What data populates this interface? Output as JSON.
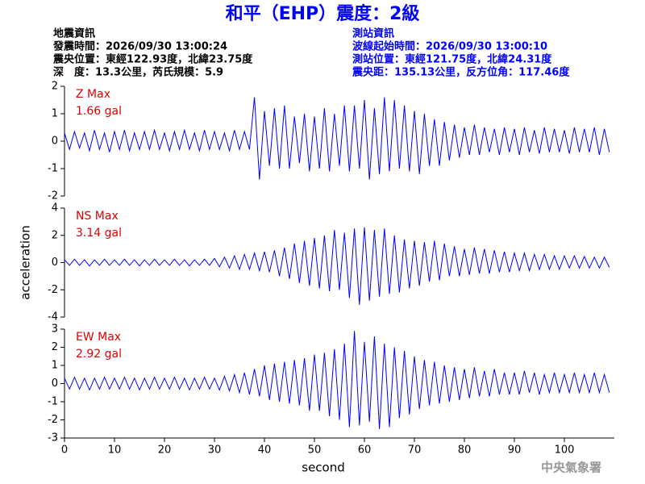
{
  "header": {
    "title": "和平（EHP）震度：2級",
    "left": [
      "地震資訊",
      "發震時間：2026/09/30 13:00:24",
      "震央位置：東經122.93度，北緯23.75度",
      "深　度：13.3公里，芮氏規模：5.9"
    ],
    "right": [
      "測站資訊",
      "波線起始時間：2026/09/30 13:00:10",
      "測站位置：東經121.75度，北緯24.31度",
      "震央距：135.13公里，反方位角：117.46度"
    ],
    "footer": "中央氣象署"
  },
  "chart_data": [
    {
      "type": "line",
      "annotation": [
        "Z Max",
        "1.66 gal"
      ],
      "x": [
        0,
        1,
        2,
        3,
        4,
        5,
        6,
        7,
        8,
        9,
        10,
        11,
        12,
        13,
        14,
        15,
        16,
        17,
        18,
        19,
        20,
        21,
        22,
        23,
        24,
        25,
        26,
        27,
        28,
        29,
        30,
        31,
        32,
        33,
        34,
        35,
        36,
        37,
        38,
        39,
        40,
        41,
        42,
        43,
        44,
        45,
        46,
        47,
        48,
        49,
        50,
        51,
        52,
        53,
        54,
        55,
        56,
        57,
        58,
        59,
        60,
        61,
        62,
        63,
        64,
        65,
        66,
        67,
        68,
        69,
        70,
        71,
        72,
        73,
        74,
        75,
        76,
        77,
        78,
        79,
        80,
        81,
        82,
        83,
        84,
        85,
        86,
        87,
        88,
        89,
        90,
        91,
        92,
        93,
        94,
        95,
        96,
        97,
        98,
        99,
        100,
        101,
        102,
        103,
        104,
        105,
        106,
        107,
        108,
        109
      ],
      "series": [
        {
          "color": "#0000ff",
          "values": [
            0.3,
            -0.3,
            0.35,
            -0.25,
            0.3,
            -0.35,
            0.4,
            -0.3,
            0.3,
            -0.4,
            0.35,
            -0.3,
            0.4,
            -0.35,
            0.3,
            -0.3,
            0.35,
            -0.3,
            0.4,
            -0.3,
            0.3,
            -0.35,
            0.35,
            -0.3,
            0.4,
            -0.3,
            0.3,
            -0.35,
            0.4,
            -0.3,
            0.35,
            -0.3,
            0.3,
            -0.35,
            0.4,
            -0.3,
            0.35,
            -0.3,
            1.6,
            -1.4,
            1.1,
            -0.9,
            1.2,
            -1.0,
            1.3,
            -1.0,
            0.9,
            -0.8,
            1.0,
            -1.1,
            0.9,
            -1.0,
            1.2,
            -1.1,
            1.0,
            -0.9,
            1.3,
            -1.1,
            1.3,
            -1.0,
            1.5,
            -1.4,
            1.2,
            -1.2,
            1.6,
            -1.1,
            1.5,
            -1.0,
            1.3,
            -1.1,
            1.1,
            -1.2,
            1.0,
            -0.9,
            0.8,
            -0.9,
            0.7,
            -0.7,
            0.6,
            -0.6,
            0.5,
            -0.5,
            0.6,
            -0.5,
            0.5,
            -0.4,
            0.45,
            -0.5,
            0.5,
            -0.4,
            0.45,
            -0.5,
            0.5,
            -0.4,
            0.4,
            -0.45,
            0.5,
            -0.4,
            0.45,
            -0.4,
            0.4,
            -0.45,
            0.5,
            -0.4,
            0.45,
            -0.4,
            0.5,
            -0.5,
            0.45,
            -0.4
          ]
        }
      ],
      "xlim": [
        0,
        110
      ],
      "ylim": [
        -2,
        2
      ],
      "yticks": [
        -2,
        -1,
        0,
        1,
        2
      ]
    },
    {
      "type": "line",
      "annotation": [
        "NS Max",
        "3.14 gal"
      ],
      "ylabel": "acceleration",
      "x": [
        0,
        1,
        2,
        3,
        4,
        5,
        6,
        7,
        8,
        9,
        10,
        11,
        12,
        13,
        14,
        15,
        16,
        17,
        18,
        19,
        20,
        21,
        22,
        23,
        24,
        25,
        26,
        27,
        28,
        29,
        30,
        31,
        32,
        33,
        34,
        35,
        36,
        37,
        38,
        39,
        40,
        41,
        42,
        43,
        44,
        45,
        46,
        47,
        48,
        49,
        50,
        51,
        52,
        53,
        54,
        55,
        56,
        57,
        58,
        59,
        60,
        61,
        62,
        63,
        64,
        65,
        66,
        67,
        68,
        69,
        70,
        71,
        72,
        73,
        74,
        75,
        76,
        77,
        78,
        79,
        80,
        81,
        82,
        83,
        84,
        85,
        86,
        87,
        88,
        89,
        90,
        91,
        92,
        93,
        94,
        95,
        96,
        97,
        98,
        99,
        100,
        101,
        102,
        103,
        104,
        105,
        106,
        107,
        108,
        109
      ],
      "series": [
        {
          "color": "#0000ff",
          "values": [
            0.2,
            -0.2,
            0.25,
            -0.2,
            0.2,
            -0.25,
            0.2,
            -0.2,
            0.25,
            -0.2,
            0.2,
            -0.2,
            0.25,
            -0.2,
            0.2,
            -0.25,
            0.2,
            -0.2,
            0.25,
            -0.2,
            0.2,
            -0.2,
            0.25,
            -0.2,
            0.2,
            -0.25,
            0.2,
            -0.2,
            0.25,
            -0.2,
            0.3,
            -0.3,
            0.4,
            -0.4,
            0.5,
            -0.5,
            0.6,
            -0.5,
            0.7,
            -0.6,
            0.8,
            -0.7,
            0.9,
            -1.0,
            1.1,
            -1.2,
            1.4,
            -1.5,
            1.6,
            -1.7,
            1.8,
            -1.9,
            2.0,
            -2.1,
            2.4,
            -2.0,
            2.2,
            -2.6,
            2.5,
            -3.1,
            2.6,
            -2.8,
            2.4,
            -2.5,
            2.5,
            -2.3,
            2.0,
            -2.2,
            1.7,
            -1.9,
            1.6,
            -1.7,
            1.5,
            -1.4,
            1.6,
            -1.3,
            1.4,
            -1.0,
            1.2,
            -1.0,
            1.0,
            -0.9,
            1.1,
            -0.8,
            1.0,
            -0.8,
            0.9,
            -0.7,
            0.8,
            -0.7,
            0.7,
            -0.6,
            0.7,
            -0.6,
            0.6,
            -0.5,
            0.6,
            -0.5,
            0.5,
            -0.5,
            0.5,
            -0.4,
            0.5,
            -0.4,
            0.45,
            -0.4,
            0.4,
            -0.4,
            0.4,
            -0.35
          ]
        }
      ],
      "xlim": [
        0,
        110
      ],
      "ylim": [
        -4,
        4
      ],
      "yticks": [
        -4,
        -2,
        0,
        2,
        4
      ]
    },
    {
      "type": "line",
      "annotation": [
        "EW Max",
        "2.92 gal"
      ],
      "xlabel": "second",
      "x": [
        0,
        1,
        2,
        3,
        4,
        5,
        6,
        7,
        8,
        9,
        10,
        11,
        12,
        13,
        14,
        15,
        16,
        17,
        18,
        19,
        20,
        21,
        22,
        23,
        24,
        25,
        26,
        27,
        28,
        29,
        30,
        31,
        32,
        33,
        34,
        35,
        36,
        37,
        38,
        39,
        40,
        41,
        42,
        43,
        44,
        45,
        46,
        47,
        48,
        49,
        50,
        51,
        52,
        53,
        54,
        55,
        56,
        57,
        58,
        59,
        60,
        61,
        62,
        63,
        64,
        65,
        66,
        67,
        68,
        69,
        70,
        71,
        72,
        73,
        74,
        75,
        76,
        77,
        78,
        79,
        80,
        81,
        82,
        83,
        84,
        85,
        86,
        87,
        88,
        89,
        90,
        91,
        92,
        93,
        94,
        95,
        96,
        97,
        98,
        99,
        100,
        101,
        102,
        103,
        104,
        105,
        106,
        107,
        108,
        109
      ],
      "series": [
        {
          "color": "#0000ff",
          "values": [
            0.3,
            -0.3,
            0.35,
            -0.3,
            0.3,
            -0.35,
            0.3,
            -0.3,
            0.35,
            -0.3,
            0.3,
            -0.3,
            0.35,
            -0.3,
            0.3,
            -0.35,
            0.3,
            -0.3,
            0.35,
            -0.3,
            0.3,
            -0.3,
            0.35,
            -0.3,
            0.3,
            -0.35,
            0.3,
            -0.3,
            0.35,
            -0.3,
            0.3,
            -0.35,
            0.4,
            -0.4,
            0.5,
            -0.5,
            0.6,
            -0.6,
            0.8,
            -0.7,
            1.0,
            -0.9,
            1.1,
            -1.0,
            1.2,
            -1.1,
            1.3,
            -1.2,
            1.4,
            -1.5,
            1.6,
            -1.5,
            1.7,
            -1.8,
            1.9,
            -2.0,
            2.2,
            -2.4,
            2.9,
            -2.3,
            2.3,
            -2.1,
            2.6,
            -2.5,
            2.2,
            -2.4,
            2.0,
            -1.9,
            1.8,
            -1.7,
            1.5,
            -1.4,
            1.3,
            -1.2,
            1.2,
            -1.1,
            1.0,
            -1.0,
            0.9,
            -0.9,
            0.8,
            -0.8,
            0.9,
            -0.7,
            0.7,
            -0.7,
            0.8,
            -0.6,
            0.6,
            -0.6,
            0.6,
            -0.6,
            0.7,
            -0.5,
            0.6,
            -0.6,
            0.5,
            -0.5,
            0.6,
            -0.5,
            0.5,
            -0.5,
            0.6,
            -0.5,
            0.5,
            -0.5,
            0.6,
            -0.5,
            0.5,
            -0.5
          ]
        }
      ],
      "xlim": [
        0,
        110
      ],
      "ylim": [
        -3,
        3
      ],
      "yticks": [
        -3,
        -2,
        -1,
        0,
        1,
        2,
        3
      ],
      "xticks": [
        0,
        10,
        20,
        30,
        40,
        50,
        60,
        70,
        80,
        90,
        100
      ]
    }
  ]
}
